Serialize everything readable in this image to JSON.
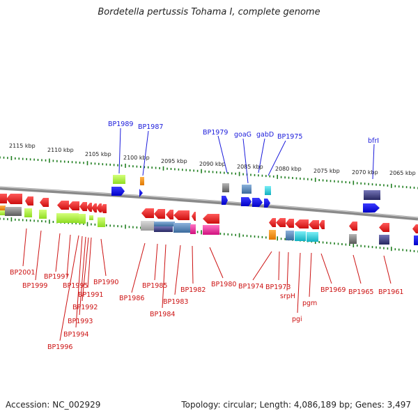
{
  "title": "Bordetella pertussis Tohama I, complete genome",
  "footer": {
    "accession": "Accession: NC_002929",
    "topology": "Topology: circular; Length: 4,086,189 bp; Genes: 3,497"
  },
  "scale_labels": [
    "2115 kbp",
    "2110 kbp",
    "2105 kbp",
    "2100 kbp",
    "2095 kbp",
    "2090 kbp",
    "2085 kbp",
    "2080 kbp",
    "2075 kbp",
    "2070 kbp",
    "2065 kbp"
  ],
  "top_gene_labels": [
    "BP1989",
    "BP1987",
    "BP1979",
    "goaG",
    "gabD",
    "BP1975",
    "bfrI"
  ],
  "bottom_gene_labels": [
    "BP2001",
    "BP1999",
    "BP1997",
    "BP1995",
    "BP1996",
    "BP1994",
    "BP1993",
    "BP1992",
    "BP1991",
    "BP1990",
    "BP1986",
    "BP1985",
    "BP1984",
    "BP1983",
    "BP1982",
    "BP1980",
    "BP1974",
    "BP1973",
    "srpH",
    "pgi",
    "pgm",
    "BP1969",
    "BP1965",
    "BP1961"
  ],
  "colors": {
    "backbone": "#888888",
    "tick": "#1e7d1e",
    "label_top": "#1a1adb",
    "label_bottom": "#cc1111",
    "feature_red": "#e8191b",
    "feature_blue": "#0a0ae6",
    "feature_green": "#a6f23a",
    "feature_orange": "#f08c0a",
    "feature_grey": "#7a7a7a",
    "feature_steel": "#5a86b4",
    "feature_cyan": "#22ccd8",
    "feature_navy": "#3a3a7a",
    "feature_magenta": "#e81c9a"
  }
}
